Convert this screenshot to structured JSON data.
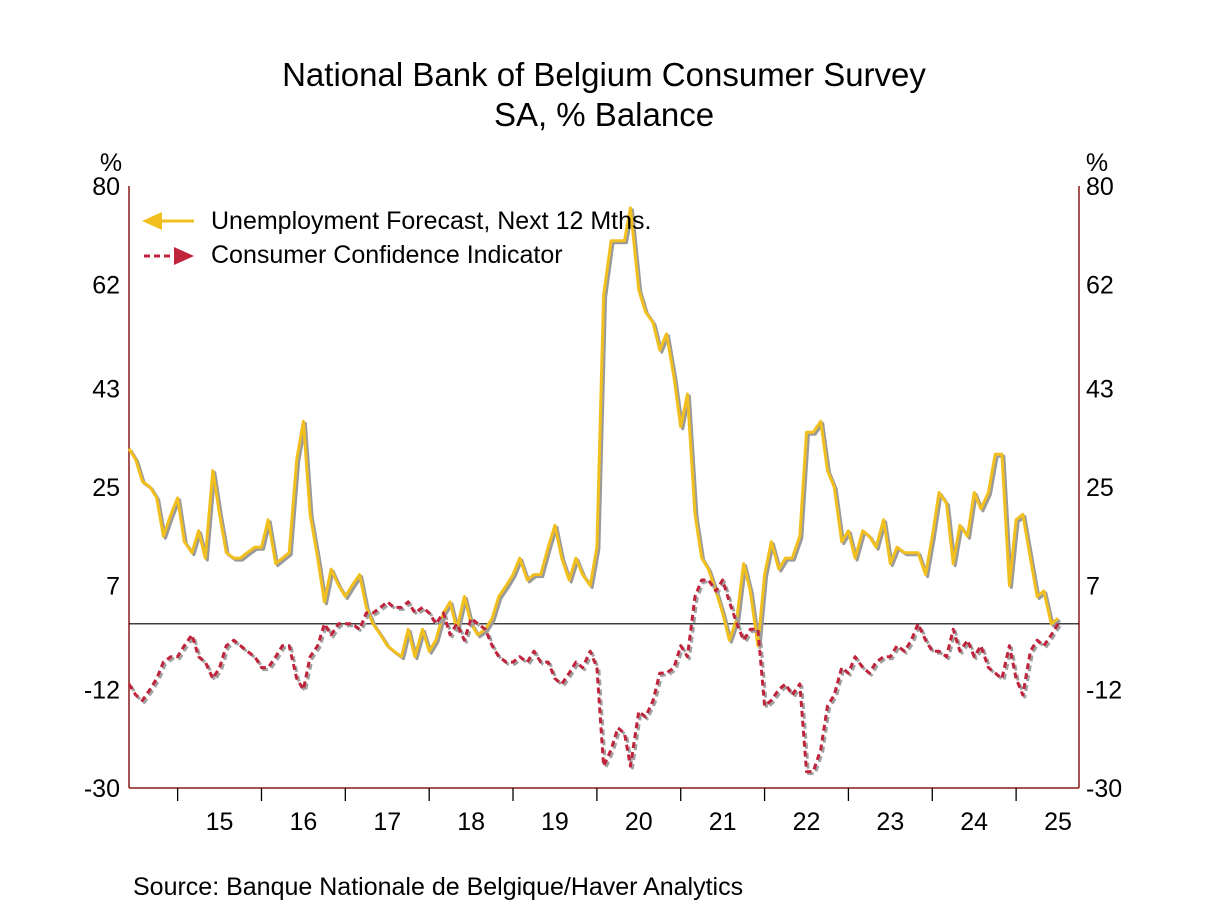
{
  "chart_data": {
    "type": "line",
    "title": "National Bank of Belgium Consumer Survey",
    "subtitle": "SA, % Balance",
    "ylabel_left": "%",
    "ylabel_right": "%",
    "ylim": [
      -30,
      80
    ],
    "yticks": [
      80,
      62,
      43,
      25,
      7,
      -12,
      -30
    ],
    "zero_line": true,
    "x_start_year": 2014.42,
    "x_end_year": 2025.75,
    "year_boundaries": [
      2015,
      2016,
      2017,
      2018,
      2019,
      2020,
      2021,
      2022,
      2023,
      2024,
      2025
    ],
    "xtick_labels": [
      "15",
      "16",
      "17",
      "18",
      "19",
      "20",
      "21",
      "22",
      "23",
      "24",
      "25"
    ],
    "legend_position": "top-left",
    "source": "Source:  Banque Nationale de Belgique/Haver Analytics",
    "series": [
      {
        "name": "Unemployment Forecast, Next 12 Mths.",
        "color": "#f2c01e",
        "shadow_color": "#9a9a9a",
        "style": "solid",
        "marker": "left-arrow",
        "points": [
          [
            2014.42,
            32
          ],
          [
            2014.5,
            30
          ],
          [
            2014.58,
            26
          ],
          [
            2014.67,
            25
          ],
          [
            2014.75,
            23
          ],
          [
            2014.83,
            16
          ],
          [
            2014.92,
            20
          ],
          [
            2015.0,
            23
          ],
          [
            2015.08,
            15
          ],
          [
            2015.17,
            13
          ],
          [
            2015.25,
            17
          ],
          [
            2015.33,
            12
          ],
          [
            2015.42,
            28
          ],
          [
            2015.5,
            20
          ],
          [
            2015.58,
            13
          ],
          [
            2015.67,
            12
          ],
          [
            2015.75,
            12
          ],
          [
            2015.83,
            13
          ],
          [
            2015.92,
            14
          ],
          [
            2016.0,
            14
          ],
          [
            2016.08,
            19
          ],
          [
            2016.17,
            11
          ],
          [
            2016.25,
            12
          ],
          [
            2016.33,
            13
          ],
          [
            2016.42,
            30
          ],
          [
            2016.5,
            37
          ],
          [
            2016.58,
            20
          ],
          [
            2016.67,
            12
          ],
          [
            2016.75,
            4
          ],
          [
            2016.83,
            10
          ],
          [
            2016.92,
            7
          ],
          [
            2017.0,
            5
          ],
          [
            2017.08,
            7
          ],
          [
            2017.17,
            9
          ],
          [
            2017.25,
            3
          ],
          [
            2017.33,
            0
          ],
          [
            2017.42,
            -2
          ],
          [
            2017.5,
            -4
          ],
          [
            2017.58,
            -5
          ],
          [
            2017.67,
            -6
          ],
          [
            2017.75,
            -1
          ],
          [
            2017.83,
            -6
          ],
          [
            2017.92,
            -1
          ],
          [
            2018.0,
            -5
          ],
          [
            2018.08,
            -3
          ],
          [
            2018.17,
            2
          ],
          [
            2018.25,
            4
          ],
          [
            2018.33,
            -1
          ],
          [
            2018.42,
            5
          ],
          [
            2018.5,
            0
          ],
          [
            2018.58,
            -2
          ],
          [
            2018.67,
            -1
          ],
          [
            2018.75,
            1
          ],
          [
            2018.83,
            5
          ],
          [
            2018.92,
            7
          ],
          [
            2019.0,
            9
          ],
          [
            2019.08,
            12
          ],
          [
            2019.17,
            8
          ],
          [
            2019.25,
            9
          ],
          [
            2019.33,
            9
          ],
          [
            2019.42,
            14
          ],
          [
            2019.5,
            18
          ],
          [
            2019.58,
            12
          ],
          [
            2019.67,
            8
          ],
          [
            2019.75,
            12
          ],
          [
            2019.83,
            9
          ],
          [
            2019.92,
            7
          ],
          [
            2020.0,
            14
          ],
          [
            2020.08,
            60
          ],
          [
            2020.17,
            70
          ],
          [
            2020.25,
            70
          ],
          [
            2020.33,
            70
          ],
          [
            2020.4,
            76
          ],
          [
            2020.5,
            61
          ],
          [
            2020.58,
            57
          ],
          [
            2020.67,
            55
          ],
          [
            2020.75,
            50
          ],
          [
            2020.83,
            53
          ],
          [
            2020.92,
            45
          ],
          [
            2021.0,
            36
          ],
          [
            2021.08,
            42
          ],
          [
            2021.17,
            20
          ],
          [
            2021.25,
            12
          ],
          [
            2021.33,
            10
          ],
          [
            2021.42,
            6
          ],
          [
            2021.5,
            2
          ],
          [
            2021.58,
            -3
          ],
          [
            2021.67,
            1
          ],
          [
            2021.75,
            11
          ],
          [
            2021.83,
            6
          ],
          [
            2021.92,
            -4
          ],
          [
            2022.0,
            9
          ],
          [
            2022.08,
            15
          ],
          [
            2022.17,
            10
          ],
          [
            2022.25,
            12
          ],
          [
            2022.33,
            12
          ],
          [
            2022.42,
            16
          ],
          [
            2022.5,
            35
          ],
          [
            2022.58,
            35
          ],
          [
            2022.67,
            37
          ],
          [
            2022.75,
            28
          ],
          [
            2022.83,
            25
          ],
          [
            2022.92,
            15
          ],
          [
            2023.0,
            17
          ],
          [
            2023.08,
            12
          ],
          [
            2023.17,
            17
          ],
          [
            2023.25,
            16
          ],
          [
            2023.33,
            14
          ],
          [
            2023.42,
            19
          ],
          [
            2023.5,
            11
          ],
          [
            2023.58,
            14
          ],
          [
            2023.67,
            13
          ],
          [
            2023.75,
            13
          ],
          [
            2023.83,
            13
          ],
          [
            2023.92,
            9
          ],
          [
            2024.0,
            16
          ],
          [
            2024.08,
            24
          ],
          [
            2024.17,
            22
          ],
          [
            2024.25,
            11
          ],
          [
            2024.33,
            18
          ],
          [
            2024.42,
            16
          ],
          [
            2024.5,
            24
          ],
          [
            2024.58,
            21
          ],
          [
            2024.67,
            24
          ],
          [
            2024.75,
            31
          ],
          [
            2024.83,
            31
          ],
          [
            2024.92,
            7
          ],
          [
            2025.0,
            19
          ],
          [
            2025.08,
            20
          ],
          [
            2025.17,
            12
          ],
          [
            2025.25,
            5
          ],
          [
            2025.33,
            6
          ],
          [
            2025.42,
            0
          ],
          [
            2025.5,
            1
          ]
        ]
      },
      {
        "name": "Consumer Confidence Indicator",
        "color": "#c0243c",
        "shadow_color": "#a0a0a0",
        "style": "dashed",
        "marker": "right-arrow",
        "points": [
          [
            2014.42,
            -11
          ],
          [
            2014.5,
            -13
          ],
          [
            2014.58,
            -14
          ],
          [
            2014.67,
            -12
          ],
          [
            2014.75,
            -10
          ],
          [
            2014.83,
            -7
          ],
          [
            2014.92,
            -6
          ],
          [
            2015.0,
            -6
          ],
          [
            2015.08,
            -4
          ],
          [
            2015.17,
            -2
          ],
          [
            2015.25,
            -6
          ],
          [
            2015.33,
            -7
          ],
          [
            2015.42,
            -10
          ],
          [
            2015.5,
            -8
          ],
          [
            2015.58,
            -4
          ],
          [
            2015.67,
            -3
          ],
          [
            2015.75,
            -4
          ],
          [
            2015.83,
            -5
          ],
          [
            2015.92,
            -6
          ],
          [
            2016.0,
            -8
          ],
          [
            2016.08,
            -8
          ],
          [
            2016.17,
            -6
          ],
          [
            2016.25,
            -4
          ],
          [
            2016.33,
            -4
          ],
          [
            2016.42,
            -10
          ],
          [
            2016.5,
            -12
          ],
          [
            2016.58,
            -6
          ],
          [
            2016.67,
            -4
          ],
          [
            2016.75,
            0
          ],
          [
            2016.83,
            -2
          ],
          [
            2016.92,
            0
          ],
          [
            2017.0,
            0
          ],
          [
            2017.08,
            0
          ],
          [
            2017.17,
            -1
          ],
          [
            2017.25,
            2
          ],
          [
            2017.33,
            2
          ],
          [
            2017.42,
            3
          ],
          [
            2017.5,
            4
          ],
          [
            2017.58,
            3
          ],
          [
            2017.67,
            3
          ],
          [
            2017.75,
            4
          ],
          [
            2017.83,
            2
          ],
          [
            2017.92,
            3
          ],
          [
            2018.0,
            2
          ],
          [
            2018.08,
            0
          ],
          [
            2018.17,
            2
          ],
          [
            2018.25,
            -2
          ],
          [
            2018.33,
            0
          ],
          [
            2018.42,
            -3
          ],
          [
            2018.5,
            1
          ],
          [
            2018.58,
            0
          ],
          [
            2018.67,
            -1
          ],
          [
            2018.75,
            -4
          ],
          [
            2018.83,
            -6
          ],
          [
            2018.92,
            -7
          ],
          [
            2019.0,
            -7
          ],
          [
            2019.08,
            -6
          ],
          [
            2019.17,
            -7
          ],
          [
            2019.25,
            -5
          ],
          [
            2019.33,
            -7
          ],
          [
            2019.42,
            -7
          ],
          [
            2019.5,
            -10
          ],
          [
            2019.58,
            -11
          ],
          [
            2019.67,
            -9
          ],
          [
            2019.75,
            -7
          ],
          [
            2019.83,
            -8
          ],
          [
            2019.92,
            -5
          ],
          [
            2020.0,
            -8
          ],
          [
            2020.08,
            -26
          ],
          [
            2020.17,
            -23
          ],
          [
            2020.25,
            -19
          ],
          [
            2020.33,
            -20
          ],
          [
            2020.4,
            -26
          ],
          [
            2020.5,
            -16
          ],
          [
            2020.58,
            -17
          ],
          [
            2020.67,
            -14
          ],
          [
            2020.75,
            -9
          ],
          [
            2020.83,
            -9
          ],
          [
            2020.92,
            -8
          ],
          [
            2021.0,
            -4
          ],
          [
            2021.08,
            -6
          ],
          [
            2021.17,
            5
          ],
          [
            2021.25,
            8
          ],
          [
            2021.33,
            8
          ],
          [
            2021.42,
            6
          ],
          [
            2021.5,
            8
          ],
          [
            2021.58,
            4
          ],
          [
            2021.67,
            0
          ],
          [
            2021.75,
            -3
          ],
          [
            2021.83,
            -1
          ],
          [
            2021.92,
            -1
          ],
          [
            2022.0,
            -15
          ],
          [
            2022.08,
            -14
          ],
          [
            2022.17,
            -12
          ],
          [
            2022.25,
            -11
          ],
          [
            2022.33,
            -13
          ],
          [
            2022.42,
            -11
          ],
          [
            2022.5,
            -27
          ],
          [
            2022.58,
            -27
          ],
          [
            2022.67,
            -23
          ],
          [
            2022.75,
            -15
          ],
          [
            2022.83,
            -13
          ],
          [
            2022.92,
            -8
          ],
          [
            2023.0,
            -9
          ],
          [
            2023.08,
            -6
          ],
          [
            2023.17,
            -8
          ],
          [
            2023.25,
            -9
          ],
          [
            2023.33,
            -7
          ],
          [
            2023.42,
            -6
          ],
          [
            2023.5,
            -6
          ],
          [
            2023.58,
            -4
          ],
          [
            2023.67,
            -5
          ],
          [
            2023.75,
            -3
          ],
          [
            2023.83,
            0
          ],
          [
            2023.92,
            -3
          ],
          [
            2024.0,
            -5
          ],
          [
            2024.08,
            -5
          ],
          [
            2024.17,
            -6
          ],
          [
            2024.25,
            -1
          ],
          [
            2024.33,
            -5
          ],
          [
            2024.42,
            -3
          ],
          [
            2024.5,
            -6
          ],
          [
            2024.58,
            -4
          ],
          [
            2024.67,
            -8
          ],
          [
            2024.75,
            -9
          ],
          [
            2024.83,
            -10
          ],
          [
            2024.92,
            -4
          ],
          [
            2025.0,
            -10
          ],
          [
            2025.08,
            -13
          ],
          [
            2025.17,
            -5
          ],
          [
            2025.25,
            -3
          ],
          [
            2025.33,
            -4
          ],
          [
            2025.42,
            -2
          ],
          [
            2025.5,
            0
          ]
        ]
      }
    ]
  }
}
